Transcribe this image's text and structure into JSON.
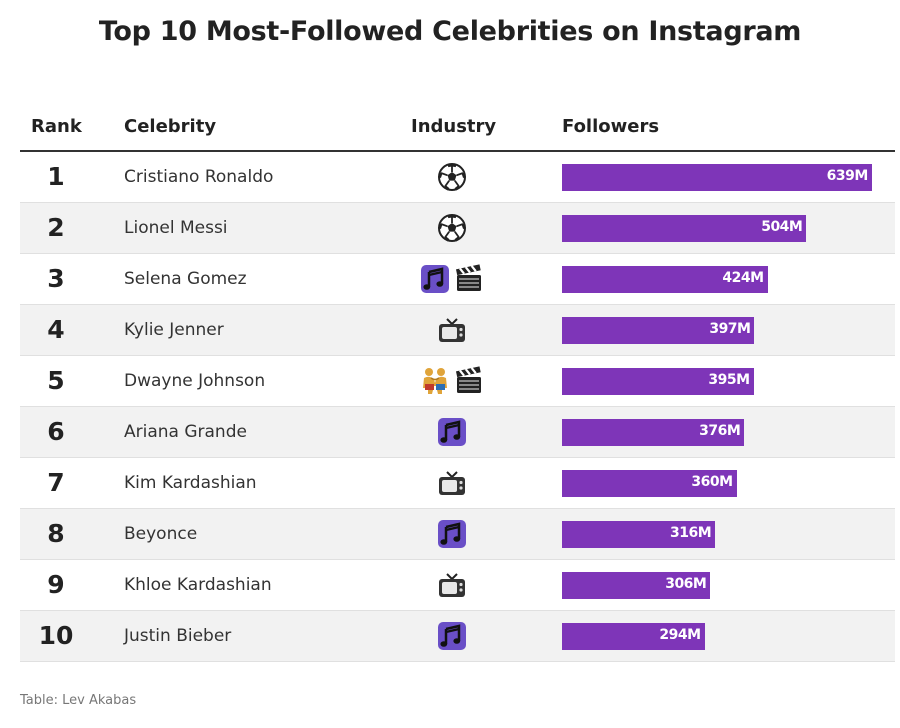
{
  "title": "Top 10 Most-Followed Celebrities on Instagram",
  "columns": {
    "rank": "Rank",
    "celebrity": "Celebrity",
    "industry": "Industry",
    "followers": "Followers"
  },
  "source": "Table: Lev Akabas",
  "colors": {
    "bar": "#7e35b8",
    "alt_row": "#f2f2f2"
  },
  "chart_data": {
    "type": "bar",
    "categories": [
      "Cristiano Ronaldo",
      "Lionel Messi",
      "Selena Gomez",
      "Kylie Jenner",
      "Dwayne Johnson",
      "Ariana Grande",
      "Kim Kardashian",
      "Beyonce",
      "Khloe Kardashian",
      "Justin Bieber"
    ],
    "values": [
      639,
      504,
      424,
      397,
      395,
      376,
      360,
      316,
      306,
      294
    ],
    "xlim": [
      0,
      660
    ],
    "rows": [
      {
        "rank": "1",
        "name": "Cristiano Ronaldo",
        "industry": [
          "soccer-ball-icon"
        ],
        "followers": 639,
        "label": "639M"
      },
      {
        "rank": "2",
        "name": "Lionel Messi",
        "industry": [
          "soccer-ball-icon"
        ],
        "followers": 504,
        "label": "504M"
      },
      {
        "rank": "3",
        "name": "Selena Gomez",
        "industry": [
          "music-notes-icon",
          "clapper-board-icon"
        ],
        "followers": 424,
        "label": "424M"
      },
      {
        "rank": "4",
        "name": "Kylie Jenner",
        "industry": [
          "television-icon"
        ],
        "followers": 397,
        "label": "397M"
      },
      {
        "rank": "5",
        "name": "Dwayne Johnson",
        "industry": [
          "wrestlers-icon",
          "clapper-board-icon"
        ],
        "followers": 395,
        "label": "395M"
      },
      {
        "rank": "6",
        "name": "Ariana Grande",
        "industry": [
          "music-notes-icon"
        ],
        "followers": 376,
        "label": "376M"
      },
      {
        "rank": "7",
        "name": "Kim Kardashian",
        "industry": [
          "television-icon"
        ],
        "followers": 360,
        "label": "360M"
      },
      {
        "rank": "8",
        "name": "Beyonce",
        "industry": [
          "music-notes-icon"
        ],
        "followers": 316,
        "label": "316M"
      },
      {
        "rank": "9",
        "name": "Khloe Kardashian",
        "industry": [
          "television-icon"
        ],
        "followers": 306,
        "label": "306M"
      },
      {
        "rank": "10",
        "name": "Justin Bieber",
        "industry": [
          "music-notes-icon"
        ],
        "followers": 294,
        "label": "294M"
      }
    ]
  }
}
